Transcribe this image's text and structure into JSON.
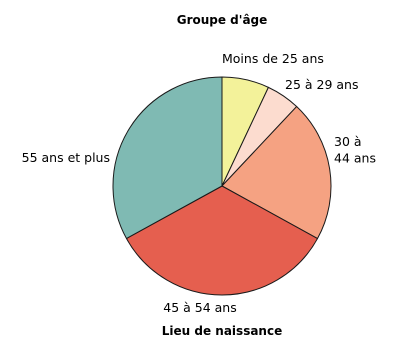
{
  "chart_data": {
    "type": "pie",
    "title": "Groupe d'âge",
    "subtitle": "Lieu de naissance",
    "start_angle_deg": 0,
    "direction": "clockwise",
    "slices": [
      {
        "label": "Moins de 25 ans",
        "value": 7,
        "color": "#f3f29a"
      },
      {
        "label": "25 à 29 ans",
        "value": 5,
        "color": "#fcdccf"
      },
      {
        "label": "30 à 44 ans",
        "label_lines": [
          "30 à",
          "44 ans"
        ],
        "value": 21,
        "color": "#f5a282"
      },
      {
        "label": "45 à 54 ans",
        "value": 34,
        "color": "#e55f4f"
      },
      {
        "label": "55 ans et plus",
        "value": 33,
        "color": "#7fbab3"
      }
    ]
  }
}
